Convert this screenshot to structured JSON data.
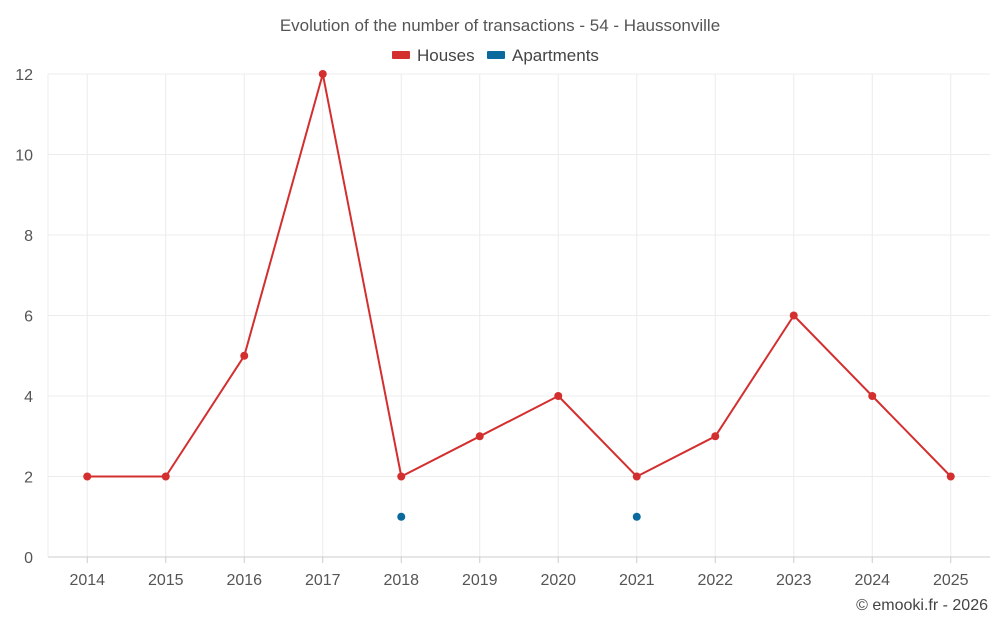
{
  "chart_data": {
    "type": "line",
    "title": "Evolution of the number of transactions - 54 - Haussonville",
    "xlabel": "",
    "ylabel": "",
    "categories": [
      "2014",
      "2015",
      "2016",
      "2017",
      "2018",
      "2019",
      "2020",
      "2021",
      "2022",
      "2023",
      "2024",
      "2025"
    ],
    "ylim": [
      0,
      12
    ],
    "yticks": [
      "0",
      "2",
      "4",
      "6",
      "8",
      "10",
      "12"
    ],
    "grid": true,
    "legend_position": "top-center",
    "series": [
      {
        "name": "Houses",
        "color": "#d32f2f",
        "values": [
          2,
          2,
          5,
          12,
          2,
          3,
          4,
          2,
          3,
          6,
          4,
          2
        ],
        "line": true
      },
      {
        "name": "Apartments",
        "color": "#0a6a9e",
        "values": [
          null,
          null,
          null,
          null,
          1,
          null,
          null,
          1,
          null,
          null,
          null,
          null
        ],
        "line": false
      }
    ]
  },
  "credit": "© emooki.fr - 2026"
}
